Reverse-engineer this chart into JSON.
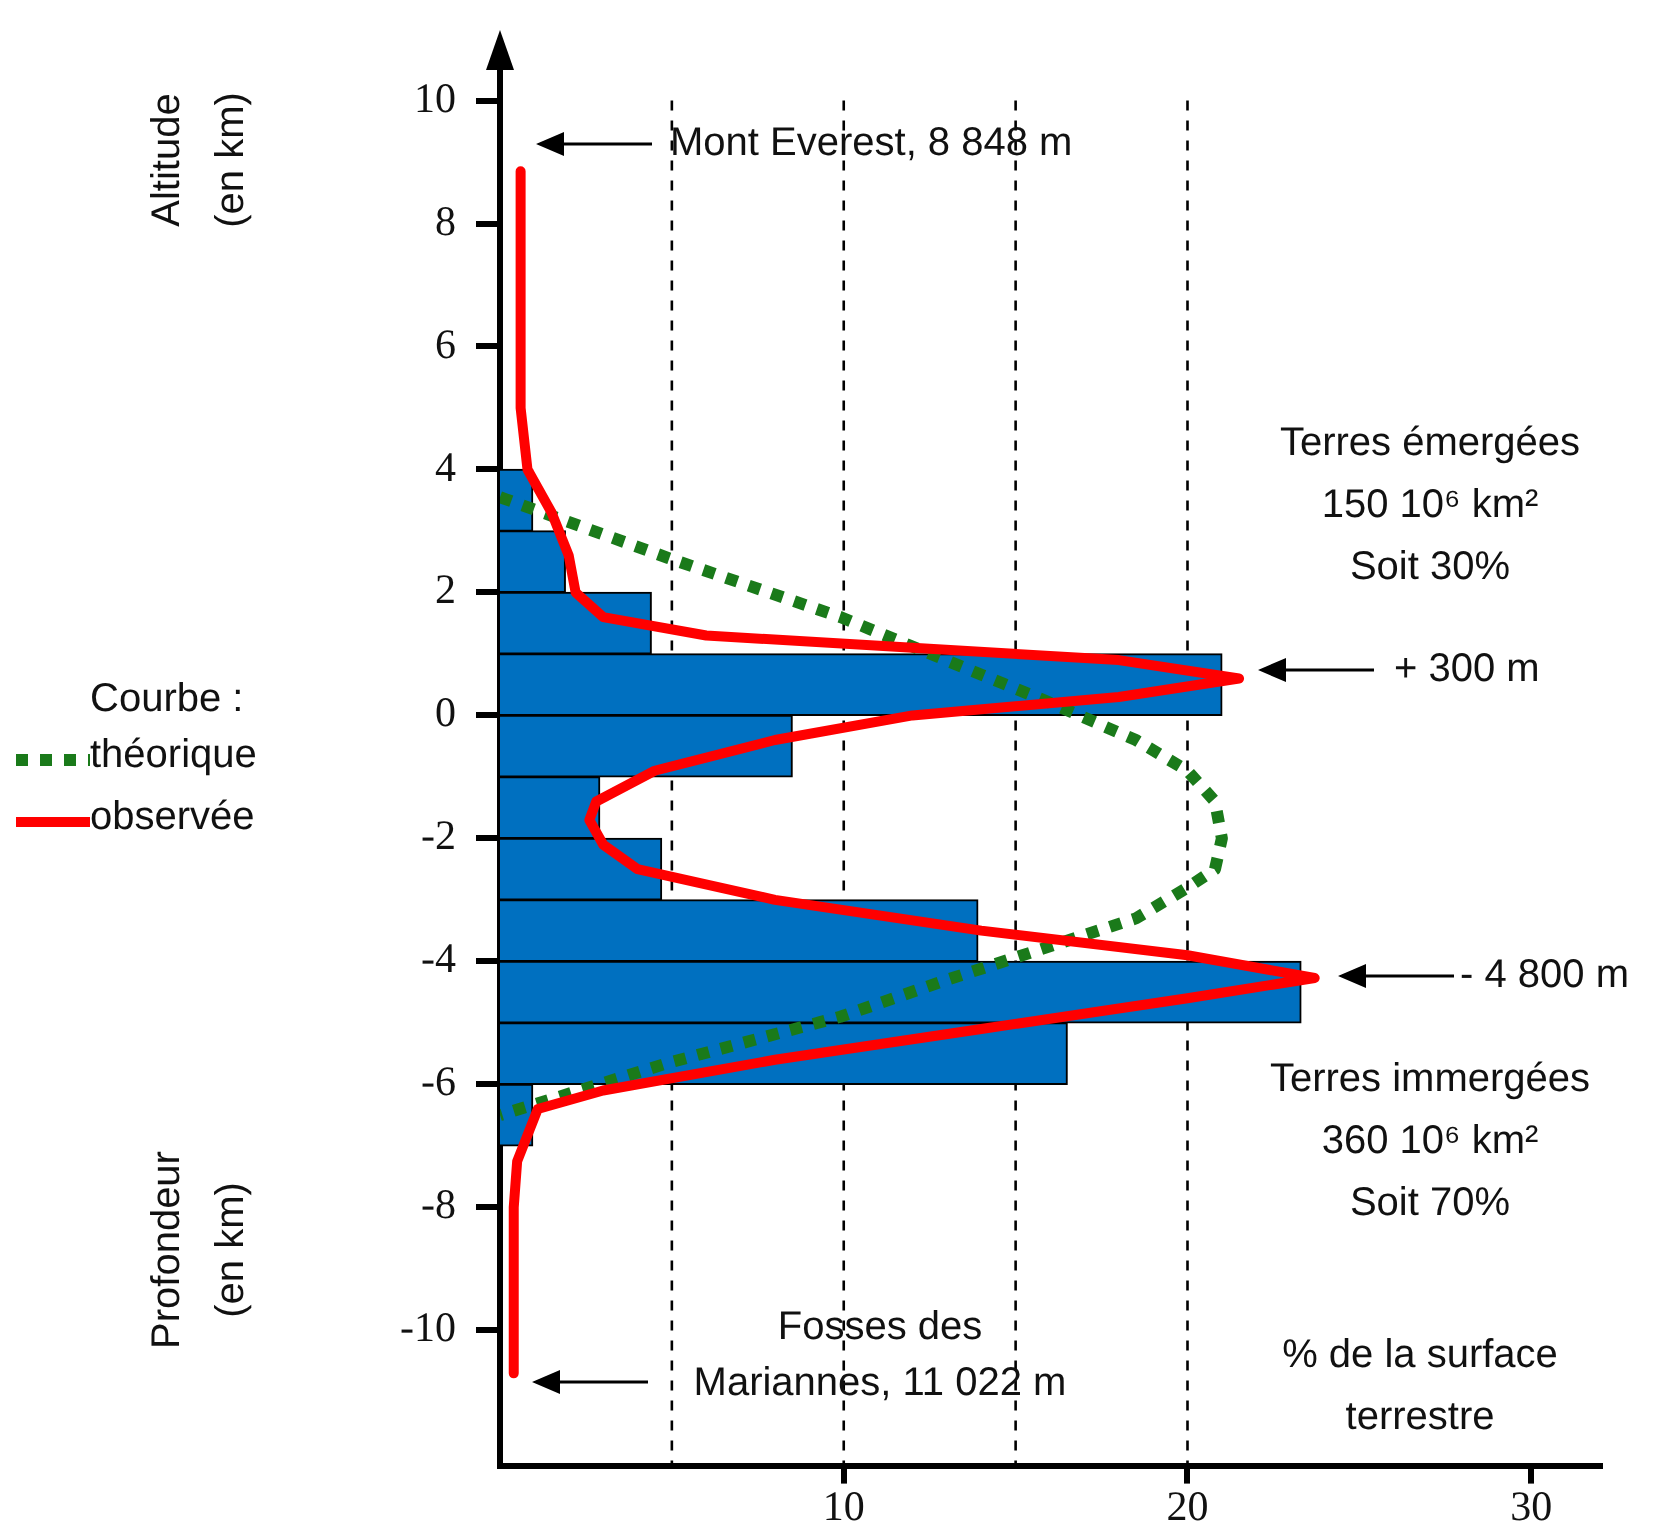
{
  "chart_data": {
    "type": "histogram",
    "orientation": "horizontal",
    "xlabel": "% de la surface\nterrestre",
    "ylabel": "Altitude\n(en km)",
    "legend_title": "Courbe :",
    "legend": "left",
    "bins": [
      -7,
      -6,
      -5,
      -4,
      -3,
      -2,
      -1,
      0,
      1,
      2,
      3,
      4
    ],
    "values": [
      0.95,
      16.5,
      23.3,
      13.9,
      4.7,
      2.9,
      8.5,
      21.0,
      4.4,
      1.9,
      0.95
    ],
    "color": "#0070c0",
    "series": [
      {
        "type": "line",
        "name": "théorique",
        "color": "#1a7a1a",
        "line_style": "dotted",
        "x": [
          3.55,
          2.56,
          1.6,
          0.23,
          -0.4,
          -0.9,
          -1.4,
          -2,
          -2.5,
          -2.8,
          -3.3,
          -3.7,
          -4.3,
          -4.9,
          -5.65,
          -6.5
        ],
        "values": [
          0,
          4.9,
          9.9,
          15.9,
          18.5,
          20,
          20.8,
          21,
          20.8,
          20,
          18.5,
          16.3,
          13,
          9.9,
          4.9,
          0
        ]
      },
      {
        "type": "line",
        "name": "observée",
        "color": "#ff0000",
        "line_style": "solid",
        "x": [
          8.85,
          5,
          4,
          3.3,
          2.6,
          2,
          1.6,
          1.3,
          1.1,
          0.9,
          0.6,
          0.3,
          0,
          -0.4,
          -0.9,
          -1.4,
          -1.7,
          -2.1,
          -2.5,
          -3,
          -3.5,
          -3.9,
          -4.27,
          -4.6,
          -5.1,
          -5.6,
          -6.1,
          -6.4,
          -7.25,
          -8,
          -10.7
        ],
        "values": [
          0.6,
          0.6,
          0.8,
          1.5,
          2,
          2.2,
          3,
          6,
          12,
          18,
          21.5,
          18,
          12,
          8,
          4.5,
          2.8,
          2.6,
          3,
          4,
          8,
          14,
          20,
          23.7,
          20,
          14,
          8,
          3,
          1.1,
          0.5,
          0.4,
          0.4
        ]
      }
    ],
    "xlim": [
      0,
      32
    ],
    "xticks": [
      10,
      20,
      30
    ],
    "ylim": [
      -12.2,
      10.9
    ],
    "yticks": [
      -10,
      -8,
      -6,
      -4,
      -2,
      0,
      2,
      4,
      6,
      8,
      10
    ],
    "ref_lines": [
      {
        "axis": "x",
        "value": 5,
        "color": "#000000",
        "line_style": "dashed"
      },
      {
        "axis": "x",
        "value": 10,
        "color": "#000000",
        "line_style": "dashed"
      },
      {
        "axis": "x",
        "value": 15,
        "color": "#000000",
        "line_style": "dashed"
      },
      {
        "axis": "x",
        "value": 20,
        "color": "#000000",
        "line_style": "dashed"
      }
    ],
    "annotations": [
      "Mont Everest, 8 848 m",
      "+ 300 m",
      "- 4 800 m",
      "Fosses des\nMariannes, 11 022 m",
      "Terres émergées\n150 10⁶ km²\nSoit 30%",
      "Terres immergées\n360 10⁶ km²\nSoit 70%",
      "Profondeur\n(en km)"
    ]
  }
}
